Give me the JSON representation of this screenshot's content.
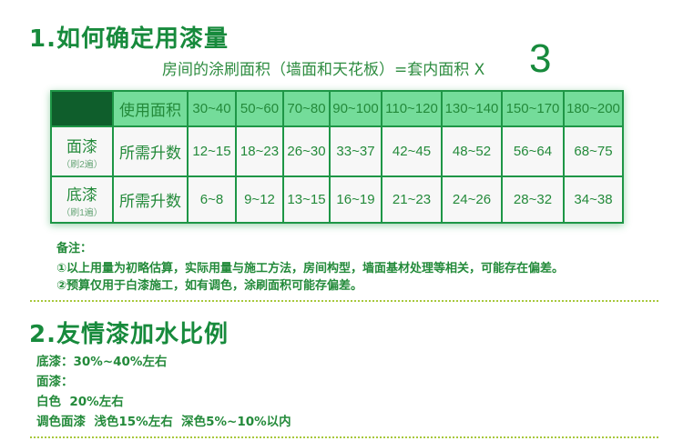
{
  "section1": {
    "title": "1.如何确定用漆量",
    "formula": "房间的涂刷面积（墙面和天花板）=套内面积 X",
    "multiplier": "3"
  },
  "table": {
    "header_label": "使用面积",
    "areas": [
      "30~40",
      "50~60",
      "70~80",
      "90~100",
      "110~120",
      "130~140",
      "150~170",
      "180~200"
    ],
    "rows": [
      {
        "name": "面漆",
        "sub": "（刷2遍）",
        "label": "所需升数",
        "values": [
          "12~15",
          "18~23",
          "26~30",
          "33~37",
          "42~45",
          "48~52",
          "56~64",
          "68~75"
        ]
      },
      {
        "name": "底漆",
        "sub": "（刷1遍）",
        "label": "所需升数",
        "values": [
          "6~8",
          "9~12",
          "13~15",
          "16~19",
          "21~23",
          "24~26",
          "28~32",
          "34~38"
        ]
      }
    ]
  },
  "notes": {
    "title": "备注：",
    "items": [
      "①以上用量为初略估算，实际用量与施工方法，房间构型，墙面基材处理等相关，可能存在偏差。",
      "②预算仅用于白漆施工，如有调色，涂刷面积可能存偏差。"
    ]
  },
  "section2": {
    "title": "2.友情漆加水比例",
    "lines": [
      "底漆：30%~40%左右",
      "面漆：",
      "白色  20%左右",
      "调色面漆  浅色15%左右  深色5%~10%以内"
    ]
  },
  "colors": {
    "title": "#178a3c",
    "table_header": "#74dc9a",
    "table_corner": "#0f5e2c",
    "border": "#1e9646",
    "divider": "#a8c83c"
  }
}
